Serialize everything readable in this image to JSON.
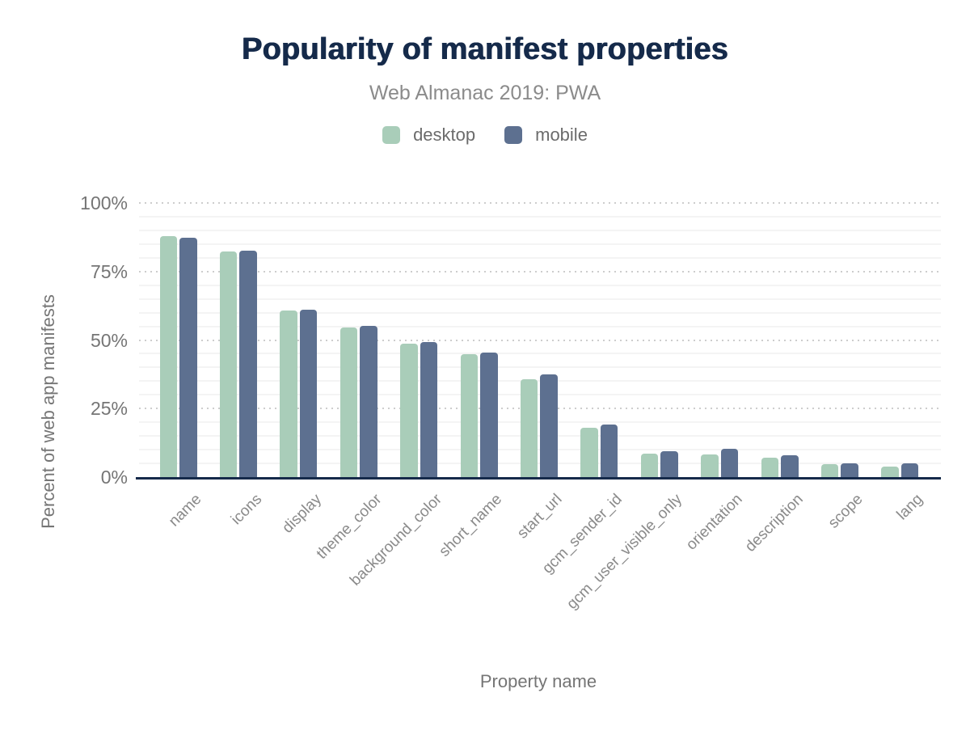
{
  "chart_data": {
    "type": "bar",
    "title": "Popularity of manifest properties",
    "subtitle": "Web Almanac 2019: PWA",
    "categories": [
      "name",
      "icons",
      "display",
      "theme_color",
      "background_color",
      "short_name",
      "start_url",
      "gcm_sender_id",
      "gcm_user_visible_only",
      "orientation",
      "description",
      "scope",
      "lang"
    ],
    "series": [
      {
        "name": "desktop",
        "color": "#a9cdb9",
        "values": [
          88,
          82.2,
          60.8,
          54.7,
          48.7,
          44.9,
          35.7,
          17.9,
          8.6,
          8.3,
          7.0,
          4.6,
          3.7
        ]
      },
      {
        "name": "mobile",
        "color": "#5d7090",
        "values": [
          87.2,
          82.6,
          61.0,
          55.3,
          49.4,
          45.5,
          37.6,
          19.2,
          9.4,
          10.2,
          7.9,
          5.1,
          5.0
        ]
      }
    ],
    "xlabel": "Property name",
    "ylabel": "Percent of web app manifests",
    "ylim": [
      0,
      100
    ],
    "yticks": [
      {
        "label": "0%",
        "value": 0
      },
      {
        "label": "25%",
        "value": 25
      },
      {
        "label": "50%",
        "value": 50
      },
      {
        "label": "75%",
        "value": 75
      },
      {
        "label": "100%",
        "value": 100
      }
    ],
    "grid": {
      "major_interval": 25,
      "major_style": "dotted",
      "minor_interval": 5,
      "minor_style": "solid"
    },
    "legend_position": "top"
  },
  "style": {
    "title_color": "#152a4a",
    "subtitle_color": "#8b8b8b",
    "axis_line_color": "#152a4a",
    "tick_label_color": "#757575",
    "x_tick_label_color": "#8a8a8a",
    "major_grid_color": "#cdcdcd",
    "minor_grid_color": "#f4f4f4",
    "background": "#ffffff"
  }
}
